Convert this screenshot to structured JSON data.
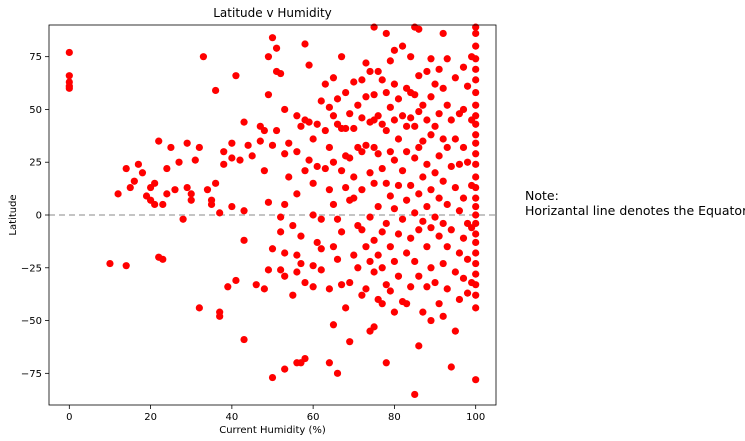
{
  "chart_data": {
    "type": "scatter",
    "title": "Latitude v Humidity",
    "xlabel": "Current Humidity (%)",
    "ylabel": "Latitude",
    "xlim": [
      -5,
      105
    ],
    "ylim": [
      -90,
      90
    ],
    "xticks": [
      0,
      20,
      40,
      60,
      80,
      100
    ],
    "yticks": [
      -75,
      -50,
      -25,
      0,
      25,
      50,
      75
    ],
    "xtick_labels": [
      "0",
      "20",
      "40",
      "60",
      "80",
      "100"
    ],
    "ytick_labels": [
      "−75",
      "−50",
      "−25",
      "0",
      "25",
      "50",
      "75"
    ],
    "grid": false,
    "marker_color": "#ff0000",
    "reference_line": {
      "y": 0,
      "style": "dashed",
      "color": "#b0b0b0"
    },
    "points": [
      [
        0,
        77
      ],
      [
        0,
        66
      ],
      [
        0,
        63
      ],
      [
        0,
        61
      ],
      [
        0,
        60
      ],
      [
        10,
        -23
      ],
      [
        12,
        10
      ],
      [
        14,
        -24
      ],
      [
        14,
        22
      ],
      [
        15,
        13
      ],
      [
        16,
        16
      ],
      [
        17,
        24
      ],
      [
        18,
        20
      ],
      [
        19,
        9
      ],
      [
        20,
        7
      ],
      [
        20,
        13
      ],
      [
        21,
        5
      ],
      [
        21,
        15
      ],
      [
        22,
        35
      ],
      [
        22,
        -20
      ],
      [
        23,
        -21
      ],
      [
        23,
        5
      ],
      [
        24,
        10
      ],
      [
        24,
        22
      ],
      [
        25,
        32
      ],
      [
        26,
        12
      ],
      [
        27,
        25
      ],
      [
        28,
        -2
      ],
      [
        29,
        13
      ],
      [
        29,
        34
      ],
      [
        30,
        7
      ],
      [
        30,
        10
      ],
      [
        31,
        26
      ],
      [
        32,
        -44
      ],
      [
        32,
        32
      ],
      [
        33,
        75
      ],
      [
        34,
        12
      ],
      [
        35,
        5
      ],
      [
        35,
        7
      ],
      [
        36,
        59
      ],
      [
        36,
        15
      ],
      [
        37,
        1
      ],
      [
        37,
        -46
      ],
      [
        37,
        -48
      ],
      [
        38,
        24
      ],
      [
        38,
        30
      ],
      [
        39,
        -34
      ],
      [
        40,
        4
      ],
      [
        40,
        27
      ],
      [
        40,
        34
      ],
      [
        41,
        66
      ],
      [
        41,
        -31
      ],
      [
        42,
        26
      ],
      [
        43,
        44
      ],
      [
        43,
        2
      ],
      [
        43,
        -12
      ],
      [
        43,
        -59
      ],
      [
        44,
        33
      ],
      [
        45,
        28
      ],
      [
        46,
        -33
      ],
      [
        47,
        35
      ],
      [
        47,
        42
      ],
      [
        48,
        40
      ],
      [
        48,
        21
      ],
      [
        48,
        -35
      ],
      [
        49,
        75
      ],
      [
        49,
        57
      ],
      [
        49,
        -26
      ],
      [
        49,
        6
      ],
      [
        50,
        84
      ],
      [
        50,
        33
      ],
      [
        50,
        -16
      ],
      [
        50,
        -77
      ],
      [
        51,
        68
      ],
      [
        51,
        79
      ],
      [
        51,
        40
      ],
      [
        52,
        67
      ],
      [
        52,
        -1
      ],
      [
        52,
        -8
      ],
      [
        52,
        -26
      ],
      [
        53,
        50
      ],
      [
        53,
        29
      ],
      [
        53,
        5
      ],
      [
        53,
        -18
      ],
      [
        53,
        -29
      ],
      [
        53,
        -73
      ],
      [
        54,
        34
      ],
      [
        54,
        18
      ],
      [
        55,
        -5
      ],
      [
        55,
        -38
      ],
      [
        56,
        47
      ],
      [
        56,
        30
      ],
      [
        56,
        10
      ],
      [
        56,
        -19
      ],
      [
        56,
        -27
      ],
      [
        56,
        -70
      ],
      [
        57,
        42
      ],
      [
        57,
        -10
      ],
      [
        57,
        -23
      ],
      [
        57,
        -70
      ],
      [
        58,
        81
      ],
      [
        58,
        45
      ],
      [
        58,
        21
      ],
      [
        58,
        -32
      ],
      [
        58,
        -68
      ],
      [
        59,
        71
      ],
      [
        59,
        44
      ],
      [
        59,
        26
      ],
      [
        60,
        36
      ],
      [
        60,
        15
      ],
      [
        60,
        0
      ],
      [
        60,
        -24
      ],
      [
        60,
        -34
      ],
      [
        61,
        43
      ],
      [
        61,
        23
      ],
      [
        61,
        -13
      ],
      [
        62,
        54
      ],
      [
        62,
        -2
      ],
      [
        62,
        -16
      ],
      [
        62,
        -26
      ],
      [
        63,
        62
      ],
      [
        63,
        40
      ],
      [
        63,
        22
      ],
      [
        64,
        51
      ],
      [
        64,
        32
      ],
      [
        64,
        12
      ],
      [
        64,
        -35
      ],
      [
        64,
        -70
      ],
      [
        65,
        65
      ],
      [
        65,
        47
      ],
      [
        65,
        25
      ],
      [
        65,
        5
      ],
      [
        65,
        -15
      ],
      [
        65,
        -52
      ],
      [
        66,
        55
      ],
      [
        66,
        43
      ],
      [
        66,
        -2
      ],
      [
        66,
        -21
      ],
      [
        66,
        -75
      ],
      [
        67,
        75
      ],
      [
        67,
        41
      ],
      [
        67,
        21
      ],
      [
        67,
        -8
      ],
      [
        67,
        -33
      ],
      [
        68,
        58
      ],
      [
        68,
        41
      ],
      [
        68,
        28
      ],
      [
        68,
        13
      ],
      [
        68,
        -44
      ],
      [
        69,
        48
      ],
      [
        69,
        27
      ],
      [
        69,
        7
      ],
      [
        69,
        -32
      ],
      [
        69,
        -60
      ],
      [
        70,
        63
      ],
      [
        70,
        41
      ],
      [
        70,
        18
      ],
      [
        70,
        8
      ],
      [
        70,
        -19
      ],
      [
        71,
        52
      ],
      [
        71,
        32
      ],
      [
        71,
        -5
      ],
      [
        71,
        -25
      ],
      [
        72,
        64
      ],
      [
        72,
        46
      ],
      [
        72,
        30
      ],
      [
        72,
        12
      ],
      [
        72,
        -7
      ],
      [
        72,
        -38
      ],
      [
        73,
        72
      ],
      [
        73,
        56
      ],
      [
        73,
        33
      ],
      [
        73,
        -15
      ],
      [
        73,
        -35
      ],
      [
        74,
        68
      ],
      [
        74,
        44
      ],
      [
        74,
        20
      ],
      [
        74,
        -1
      ],
      [
        74,
        -22
      ],
      [
        74,
        -55
      ],
      [
        75,
        89
      ],
      [
        75,
        57
      ],
      [
        75,
        45
      ],
      [
        75,
        32
      ],
      [
        75,
        15
      ],
      [
        75,
        -12
      ],
      [
        75,
        -27
      ],
      [
        75,
        -53
      ],
      [
        76,
        68
      ],
      [
        76,
        47
      ],
      [
        76,
        29
      ],
      [
        76,
        4
      ],
      [
        76,
        -19
      ],
      [
        76,
        -40
      ],
      [
        77,
        64
      ],
      [
        77,
        43
      ],
      [
        77,
        22
      ],
      [
        77,
        -8
      ],
      [
        77,
        -25
      ],
      [
        77,
        -42
      ],
      [
        78,
        86
      ],
      [
        78,
        58
      ],
      [
        78,
        40
      ],
      [
        78,
        15
      ],
      [
        78,
        -4
      ],
      [
        78,
        -33
      ],
      [
        78,
        -70
      ],
      [
        79,
        73
      ],
      [
        79,
        51
      ],
      [
        79,
        30
      ],
      [
        79,
        9
      ],
      [
        79,
        -15
      ],
      [
        79,
        -36
      ],
      [
        80,
        78
      ],
      [
        80,
        62
      ],
      [
        80,
        45
      ],
      [
        80,
        26
      ],
      [
        80,
        3
      ],
      [
        80,
        -22
      ],
      [
        80,
        -46
      ],
      [
        81,
        55
      ],
      [
        81,
        36
      ],
      [
        81,
        14
      ],
      [
        81,
        -9
      ],
      [
        81,
        -29
      ],
      [
        82,
        80
      ],
      [
        82,
        47
      ],
      [
        82,
        21
      ],
      [
        82,
        -2
      ],
      [
        82,
        -41
      ],
      [
        83,
        60
      ],
      [
        83,
        42
      ],
      [
        83,
        30
      ],
      [
        83,
        7
      ],
      [
        83,
        -18
      ],
      [
        83,
        -42
      ],
      [
        84,
        75
      ],
      [
        84,
        58
      ],
      [
        84,
        46
      ],
      [
        84,
        14
      ],
      [
        84,
        -11
      ],
      [
        84,
        -34
      ],
      [
        85,
        89
      ],
      [
        85,
        57
      ],
      [
        85,
        42
      ],
      [
        85,
        27
      ],
      [
        85,
        1
      ],
      [
        85,
        -22
      ],
      [
        85,
        -85
      ],
      [
        86,
        88
      ],
      [
        86,
        66
      ],
      [
        86,
        49
      ],
      [
        86,
        32
      ],
      [
        86,
        10
      ],
      [
        86,
        -7
      ],
      [
        86,
        -29
      ],
      [
        86,
        -62
      ],
      [
        87,
        52
      ],
      [
        87,
        35
      ],
      [
        87,
        18
      ],
      [
        87,
        -3
      ],
      [
        87,
        -46
      ],
      [
        88,
        68
      ],
      [
        88,
        45
      ],
      [
        88,
        24
      ],
      [
        88,
        4
      ],
      [
        88,
        -15
      ],
      [
        88,
        -34
      ],
      [
        89,
        74
      ],
      [
        89,
        56
      ],
      [
        89,
        38
      ],
      [
        89,
        12
      ],
      [
        89,
        -6
      ],
      [
        89,
        -25
      ],
      [
        89,
        -50
      ],
      [
        90,
        62
      ],
      [
        90,
        42
      ],
      [
        90,
        20
      ],
      [
        90,
        -1
      ],
      [
        90,
        -32
      ],
      [
        91,
        69
      ],
      [
        91,
        48
      ],
      [
        91,
        28
      ],
      [
        91,
        8
      ],
      [
        91,
        -10
      ],
      [
        91,
        -42
      ],
      [
        92,
        86
      ],
      [
        92,
        60
      ],
      [
        92,
        36
      ],
      [
        92,
        16
      ],
      [
        92,
        -4
      ],
      [
        92,
        -23
      ],
      [
        92,
        -48
      ],
      [
        93,
        74
      ],
      [
        93,
        52
      ],
      [
        93,
        32
      ],
      [
        93,
        5
      ],
      [
        93,
        -15
      ],
      [
        93,
        -35
      ],
      [
        94,
        45
      ],
      [
        94,
        23
      ],
      [
        94,
        -7
      ],
      [
        94,
        -72
      ],
      [
        95,
        65
      ],
      [
        95,
        36
      ],
      [
        95,
        13
      ],
      [
        95,
        -27
      ],
      [
        95,
        -55
      ],
      [
        96,
        48
      ],
      [
        96,
        24
      ],
      [
        96,
        2
      ],
      [
        96,
        -18
      ],
      [
        96,
        -40
      ],
      [
        97,
        70
      ],
      [
        97,
        50
      ],
      [
        97,
        32
      ],
      [
        97,
        8
      ],
      [
        97,
        -11
      ],
      [
        97,
        -30
      ],
      [
        98,
        61
      ],
      [
        98,
        25
      ],
      [
        98,
        -4
      ],
      [
        98,
        -21
      ],
      [
        98,
        -37
      ],
      [
        99,
        75
      ],
      [
        99,
        45
      ],
      [
        99,
        14
      ],
      [
        99,
        -6
      ],
      [
        99,
        -32
      ],
      [
        100,
        89
      ],
      [
        100,
        86
      ],
      [
        100,
        80
      ],
      [
        100,
        74
      ],
      [
        100,
        69
      ],
      [
        100,
        64
      ],
      [
        100,
        58
      ],
      [
        100,
        52
      ],
      [
        100,
        47
      ],
      [
        100,
        43
      ],
      [
        100,
        38
      ],
      [
        100,
        34
      ],
      [
        100,
        29
      ],
      [
        100,
        24
      ],
      [
        100,
        18
      ],
      [
        100,
        13
      ],
      [
        100,
        8
      ],
      [
        100,
        4
      ],
      [
        100,
        0
      ],
      [
        100,
        -4
      ],
      [
        100,
        -9
      ],
      [
        100,
        -13
      ],
      [
        100,
        -18
      ],
      [
        100,
        -23
      ],
      [
        100,
        -28
      ],
      [
        100,
        -33
      ],
      [
        100,
        -38
      ],
      [
        100,
        -44
      ],
      [
        100,
        -78
      ]
    ]
  },
  "note": {
    "line1": "Note:",
    "line2": "Horizantal line denotes the Equator"
  }
}
